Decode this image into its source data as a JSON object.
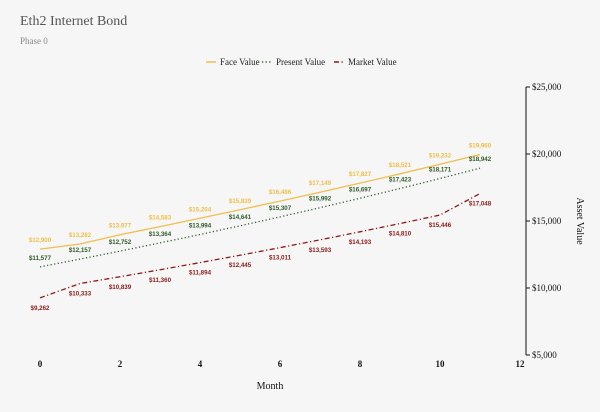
{
  "chart_data": {
    "type": "line",
    "title": "Eth2 Internet Bond",
    "subtitle": "Phase 0",
    "xlabel": "Month",
    "ylabel": "Asset Value",
    "xlim": [
      0,
      12
    ],
    "ylim": [
      5000,
      25000
    ],
    "x_ticks": [
      "0",
      "2",
      "4",
      "6",
      "8",
      "10",
      "12"
    ],
    "y_ticks": [
      "$5,000",
      "$10,000",
      "$15,000",
      "$20,000",
      "$25,000"
    ],
    "legend_position": "top-center",
    "grid": false,
    "series": [
      {
        "name": "Face Value",
        "style": "solid",
        "color": "#f0be4b",
        "x": [
          0,
          1,
          2,
          3,
          4,
          5,
          6,
          7,
          8,
          9,
          10,
          11
        ],
        "values": [
          12900,
          13282,
          13977,
          14583,
          15204,
          15839,
          16486,
          17149,
          17827,
          18521,
          19232,
          19960
        ],
        "labels": [
          "$12,900",
          "$13,282",
          "$13,977",
          "$14,583",
          "$15,204",
          "$15,839",
          "$16,486",
          "$17,149",
          "$17,827",
          "$18,521",
          "$19,232",
          "$19,960"
        ]
      },
      {
        "name": "Present Value",
        "style": "dotted",
        "color": "#2f5a2a",
        "x": [
          0,
          1,
          2,
          3,
          4,
          5,
          6,
          7,
          8,
          9,
          10,
          11
        ],
        "values": [
          11577,
          12157,
          12752,
          13364,
          13994,
          14641,
          15307,
          15992,
          16697,
          17423,
          18171,
          18942
        ],
        "labels": [
          "$11,577",
          "$12,157",
          "$12,752",
          "$13,364",
          "$13,994",
          "$14,641",
          "$15,307",
          "$15,992",
          "$16,697",
          "$17,423",
          "$18,171",
          "$18,942"
        ]
      },
      {
        "name": "Market Value",
        "style": "dashdot",
        "color": "#8b1a1a",
        "x": [
          0,
          1,
          2,
          3,
          4,
          5,
          6,
          7,
          8,
          9,
          10,
          11
        ],
        "values": [
          9262,
          10333,
          10839,
          11360,
          11894,
          12445,
          13011,
          13593,
          14193,
          14810,
          15446,
          17048
        ],
        "labels": [
          "$9,262",
          "$10,333",
          "$10,839",
          "$11,360",
          "$11,894",
          "$12,445",
          "$13,011",
          "$13,593",
          "$14,193",
          "$14,810",
          "$15,446",
          "$17,048"
        ]
      }
    ]
  }
}
